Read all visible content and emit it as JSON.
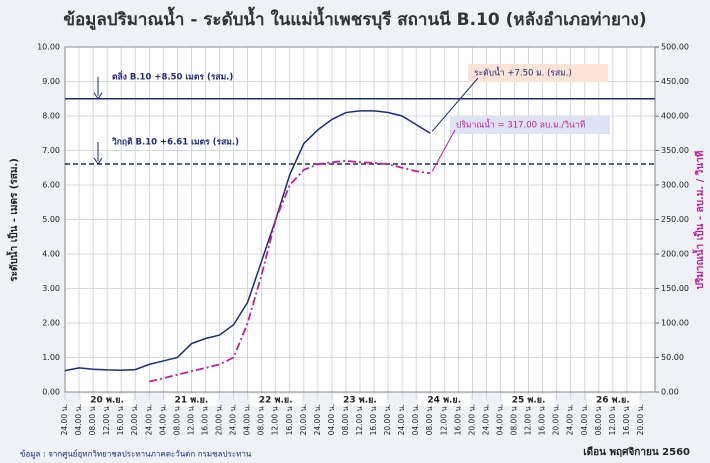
{
  "chart_data": {
    "type": "line",
    "title": "ข้อมูลปริมาณน้ำ - ระดับน้ำ ในแม่น้ำเพชรบุรี สถานนี B.10 (หลังอำเภอท่ายาง)",
    "y_label": "ระดับน้ำ เป็น - เมตร (รสม.)",
    "y2_label": "ปริมาณน้ำ เป็น - ลบ.ม. / วินาที",
    "source": "ข้อมูล : จากศูนย์อุทกวิทยาชลประทานภาคตะวันตก กรมชลประทาน",
    "month_label": "เดือน พฤศจิกายน 2560",
    "day_labels": [
      "20 พ.ย.",
      "21 พ.ย.",
      "22 พ.ย.",
      "23 พ.ย.",
      "24 พ.ย.",
      "25 พ.ย.",
      "26 พ.ย."
    ],
    "x": [
      0,
      4,
      8,
      12,
      16,
      20,
      24,
      28,
      32,
      36,
      40,
      44,
      48,
      52,
      56,
      60,
      64,
      68,
      72,
      76,
      80,
      84,
      88,
      92,
      96,
      100,
      104
    ],
    "series": [
      {
        "name": "ระดับน้ำ",
        "color": "#1f2a7a",
        "axis": "y",
        "values": [
          0.62,
          0.7,
          0.66,
          0.64,
          0.63,
          0.65,
          0.8,
          0.9,
          1.0,
          1.4,
          1.55,
          1.65,
          1.95,
          2.6,
          3.8,
          5.0,
          6.3,
          7.2,
          7.6,
          7.9,
          8.1,
          8.15,
          8.15,
          8.1,
          8.0,
          7.75,
          7.5
        ]
      },
      {
        "name": "ปริมาณน้ำ",
        "color": "#c0209a",
        "axis": "y2",
        "values": [
          null,
          null,
          null,
          null,
          null,
          null,
          15,
          20,
          25,
          30,
          35,
          40,
          50,
          100,
          170,
          250,
          300,
          322,
          330,
          333,
          335,
          333,
          332,
          330,
          325,
          320,
          317
        ]
      }
    ],
    "reference_lines": [
      {
        "value": 8.5,
        "label": "ตลิ่ง B.10  +8.50 เมตร (รสม.)",
        "color": "#1f2a7a",
        "style": "solid"
      },
      {
        "value": 6.61,
        "label": "วิกฤติ B.10   +6.61 เมตร (รสม.)",
        "color": "#1f2a7a",
        "style": "dashed"
      }
    ],
    "annotations": [
      "ระดับน้ำ  +7.50 ม. (รสม.)",
      "ปริมาณน้ำ = 317.00 ลบ.ม./วินาที"
    ],
    "xlim": [
      0,
      168
    ],
    "xticks": [
      {
        "value": 0,
        "label": "24.00 น."
      },
      {
        "value": 4,
        "label": "04.00 น."
      },
      {
        "value": 8,
        "label": "08.00 น."
      },
      {
        "value": 12,
        "label": "12.00 น."
      },
      {
        "value": 16,
        "label": "16.00 น."
      },
      {
        "value": 20,
        "label": "20.00 น."
      },
      {
        "value": 24,
        "label": "24.00 น."
      },
      {
        "value": 28,
        "label": "04.00 น."
      },
      {
        "value": 32,
        "label": "08.00 น."
      },
      {
        "value": 36,
        "label": "12.00 น."
      },
      {
        "value": 40,
        "label": "16.00 น."
      },
      {
        "value": 44,
        "label": "20.00 น."
      },
      {
        "value": 48,
        "label": "24.00 น."
      },
      {
        "value": 52,
        "label": "04.00 น."
      },
      {
        "value": 56,
        "label": "08.00 น."
      },
      {
        "value": 60,
        "label": "12.00 น."
      },
      {
        "value": 64,
        "label": "16.00 น."
      },
      {
        "value": 68,
        "label": "20.00 น."
      },
      {
        "value": 72,
        "label": "24.00 น."
      },
      {
        "value": 76,
        "label": "04.00 น."
      },
      {
        "value": 80,
        "label": "08.00 น."
      },
      {
        "value": 84,
        "label": "12.00 น."
      },
      {
        "value": 88,
        "label": "16.00 น."
      },
      {
        "value": 92,
        "label": "20.00 น."
      },
      {
        "value": 96,
        "label": "24.00 น."
      },
      {
        "value": 100,
        "label": "04.00 น."
      },
      {
        "value": 104,
        "label": "08.00 น."
      },
      {
        "value": 108,
        "label": "12.00 น."
      },
      {
        "value": 112,
        "label": "16.00 น."
      },
      {
        "value": 116,
        "label": "20.00 น."
      },
      {
        "value": 120,
        "label": "24.00 น."
      },
      {
        "value": 124,
        "label": "04.00 น."
      },
      {
        "value": 128,
        "label": "08.00 น."
      },
      {
        "value": 132,
        "label": "12.00 น."
      },
      {
        "value": 136,
        "label": "16.00 น."
      },
      {
        "value": 140,
        "label": "20.00 น."
      },
      {
        "value": 144,
        "label": "24.00 น."
      },
      {
        "value": 148,
        "label": "04.00 น."
      },
      {
        "value": 152,
        "label": "08.00 น."
      },
      {
        "value": 156,
        "label": "12.00 น."
      },
      {
        "value": 160,
        "label": "16.00 น."
      },
      {
        "value": 164,
        "label": "20.00 น."
      }
    ],
    "ylim": [
      0,
      10
    ],
    "yticks": [
      {
        "value": 0,
        "label": "0.00"
      },
      {
        "value": 1,
        "label": "1.00"
      },
      {
        "value": 2,
        "label": "2.00"
      },
      {
        "value": 3,
        "label": "3.00"
      },
      {
        "value": 4,
        "label": "4.00"
      },
      {
        "value": 5,
        "label": "5.00"
      },
      {
        "value": 6,
        "label": "6.00"
      },
      {
        "value": 7,
        "label": "7.00"
      },
      {
        "value": 8,
        "label": "8.00"
      },
      {
        "value": 9,
        "label": "9.00"
      },
      {
        "value": 10,
        "label": "10.00"
      }
    ],
    "y2lim": [
      0,
      500
    ],
    "y2ticks": [
      {
        "value": 0,
        "label": "0.00"
      },
      {
        "value": 50,
        "label": "50.00"
      },
      {
        "value": 100,
        "label": "100.00"
      },
      {
        "value": 150,
        "label": "150.00"
      },
      {
        "value": 200,
        "label": "200.00"
      },
      {
        "value": 250,
        "label": "250.00"
      },
      {
        "value": 300,
        "label": "300.00"
      },
      {
        "value": 350,
        "label": "350.00"
      },
      {
        "value": 400,
        "label": "400.00"
      },
      {
        "value": 450,
        "label": "450.00"
      },
      {
        "value": 500,
        "label": "500.00"
      }
    ],
    "grid": true
  }
}
